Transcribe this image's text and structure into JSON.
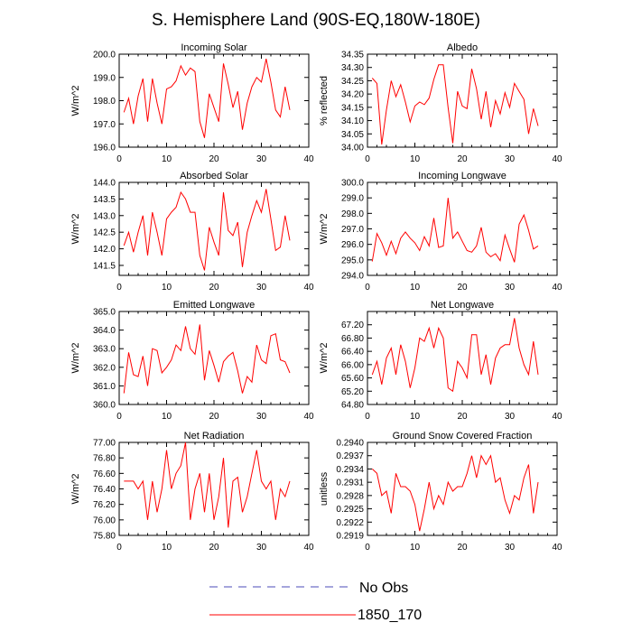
{
  "figure": {
    "title": "S. Hemisphere Land (90S-EQ,180W-180E)",
    "legend": [
      {
        "label": "No Obs",
        "color": "#4b4bb8",
        "style": "dashed"
      },
      {
        "label": "1850_170",
        "color": "#ff0000",
        "style": "solid"
      }
    ]
  },
  "chart_data": [
    {
      "type": "line",
      "title": "Incoming Solar",
      "ylabel": "W/m^2",
      "xlim": [
        0,
        40
      ],
      "ylim": [
        196.0,
        200.0
      ],
      "xticks": [
        0,
        10,
        20,
        30,
        40
      ],
      "yticks": [
        "196.0",
        "197.0",
        "198.0",
        "199.0",
        "200.0"
      ],
      "series": [
        {
          "name": "1850_170",
          "color": "#ff0000",
          "x": [
            1,
            2,
            3,
            4,
            5,
            6,
            7,
            8,
            9,
            10,
            11,
            12,
            13,
            14,
            15,
            16,
            17,
            18,
            19,
            20,
            21,
            22,
            23,
            24,
            25,
            26,
            27,
            28,
            29,
            30,
            31,
            32,
            33,
            34,
            35,
            36
          ],
          "y": [
            197.5,
            198.1,
            197.0,
            198.2,
            198.95,
            197.1,
            198.95,
            197.9,
            197.0,
            198.5,
            198.6,
            198.85,
            199.5,
            199.1,
            199.4,
            199.25,
            197.1,
            196.4,
            198.3,
            197.7,
            197.1,
            199.6,
            198.7,
            197.7,
            198.4,
            196.75,
            197.9,
            198.6,
            199.0,
            198.8,
            199.8,
            198.8,
            197.6,
            197.3,
            198.6,
            197.6
          ]
        }
      ]
    },
    {
      "type": "line",
      "title": "Albedo",
      "ylabel": "% reflected",
      "xlim": [
        0,
        40
      ],
      "ylim": [
        34.0,
        34.35
      ],
      "xticks": [
        0,
        10,
        20,
        30,
        40
      ],
      "yticks": [
        "34.00",
        "34.05",
        "34.10",
        "34.15",
        "34.20",
        "34.25",
        "34.30",
        "34.35"
      ],
      "series": [
        {
          "name": "1850_170",
          "color": "#ff0000",
          "x": [
            1,
            2,
            3,
            4,
            5,
            6,
            7,
            8,
            9,
            10,
            11,
            12,
            13,
            14,
            15,
            16,
            17,
            18,
            19,
            20,
            21,
            22,
            23,
            24,
            25,
            26,
            27,
            28,
            29,
            30,
            31,
            32,
            33,
            34,
            35,
            36
          ],
          "y": [
            34.26,
            34.24,
            34.01,
            34.14,
            34.25,
            34.19,
            34.235,
            34.17,
            34.095,
            34.155,
            34.17,
            34.16,
            34.185,
            34.255,
            34.31,
            34.31,
            34.15,
            34.015,
            34.21,
            34.155,
            34.145,
            34.295,
            34.22,
            34.105,
            34.21,
            34.075,
            34.175,
            34.125,
            34.205,
            34.15,
            34.24,
            34.21,
            34.18,
            34.05,
            34.145,
            34.08
          ]
        }
      ]
    },
    {
      "type": "line",
      "title": "Absorbed Solar",
      "ylabel": "W/m^2",
      "xlim": [
        0,
        40
      ],
      "ylim": [
        141.2,
        144.0
      ],
      "xticks": [
        0,
        10,
        20,
        30,
        40
      ],
      "yticks": [
        "141.5",
        "142.0",
        "142.5",
        "143.0",
        "143.5",
        "144.0"
      ],
      "series": [
        {
          "name": "1850_170",
          "color": "#ff0000",
          "x": [
            1,
            2,
            3,
            4,
            5,
            6,
            7,
            8,
            9,
            10,
            11,
            12,
            13,
            14,
            15,
            16,
            17,
            18,
            19,
            20,
            21,
            22,
            23,
            24,
            25,
            26,
            27,
            28,
            29,
            30,
            31,
            32,
            33,
            34,
            35,
            36
          ],
          "y": [
            142.1,
            142.5,
            141.9,
            142.5,
            143.0,
            141.8,
            143.1,
            142.5,
            141.8,
            142.9,
            143.1,
            143.25,
            143.7,
            143.5,
            143.1,
            143.1,
            141.8,
            141.35,
            142.65,
            142.2,
            141.8,
            143.7,
            142.55,
            142.4,
            142.8,
            141.45,
            142.5,
            143.0,
            143.45,
            143.1,
            143.8,
            142.9,
            141.95,
            142.05,
            143.0,
            142.25
          ]
        }
      ]
    },
    {
      "type": "line",
      "title": "Incoming Longwave",
      "ylabel": "W/m^2",
      "xlim": [
        0,
        40
      ],
      "ylim": [
        294.0,
        300.0
      ],
      "xticks": [
        0,
        10,
        20,
        30,
        40
      ],
      "yticks": [
        "294.0",
        "295.0",
        "296.0",
        "297.0",
        "298.0",
        "299.0",
        "300.0"
      ],
      "series": [
        {
          "name": "1850_170",
          "color": "#ff0000",
          "x": [
            1,
            2,
            3,
            4,
            5,
            6,
            7,
            8,
            9,
            10,
            11,
            12,
            13,
            14,
            15,
            16,
            17,
            18,
            19,
            20,
            21,
            22,
            23,
            24,
            25,
            26,
            27,
            28,
            29,
            30,
            31,
            32,
            33,
            34,
            35,
            36
          ],
          "y": [
            294.9,
            296.7,
            296.1,
            295.3,
            296.2,
            295.4,
            296.4,
            296.8,
            296.4,
            296.1,
            295.6,
            296.5,
            295.9,
            297.7,
            295.8,
            295.9,
            299.0,
            296.4,
            296.8,
            296.2,
            295.6,
            295.5,
            295.9,
            297.1,
            295.5,
            295.2,
            295.4,
            294.95,
            296.6,
            295.7,
            294.85,
            297.3,
            297.9,
            296.9,
            295.7,
            295.9
          ]
        }
      ]
    },
    {
      "type": "line",
      "title": "Emitted Longwave",
      "ylabel": "W/m^2",
      "xlim": [
        0,
        40
      ],
      "ylim": [
        360.0,
        365.0
      ],
      "xticks": [
        0,
        10,
        20,
        30,
        40
      ],
      "yticks": [
        "360.0",
        "361.0",
        "362.0",
        "363.0",
        "364.0",
        "365.0"
      ],
      "series": [
        {
          "name": "1850_170",
          "color": "#ff0000",
          "x": [
            1,
            2,
            3,
            4,
            5,
            6,
            7,
            8,
            9,
            10,
            11,
            12,
            13,
            14,
            15,
            16,
            17,
            18,
            19,
            20,
            21,
            22,
            23,
            24,
            25,
            26,
            27,
            28,
            29,
            30,
            31,
            32,
            33,
            34,
            35,
            36
          ],
          "y": [
            360.6,
            362.8,
            361.6,
            361.5,
            362.6,
            361.0,
            363.0,
            362.9,
            361.7,
            362.0,
            362.4,
            363.2,
            362.9,
            364.2,
            363.0,
            362.7,
            364.3,
            361.3,
            362.9,
            362.1,
            361.2,
            362.3,
            362.6,
            362.8,
            361.8,
            360.6,
            361.5,
            361.2,
            363.2,
            362.4,
            362.2,
            363.7,
            363.8,
            362.4,
            362.3,
            361.7
          ]
        }
      ]
    },
    {
      "type": "line",
      "title": "Net Longwave",
      "ylabel": "W/m^2",
      "xlim": [
        0,
        40
      ],
      "ylim": [
        64.8,
        67.6
      ],
      "xticks": [
        0,
        10,
        20,
        30,
        40
      ],
      "yticks": [
        "64.80",
        "65.20",
        "65.60",
        "66.00",
        "66.40",
        "66.80",
        "67.20"
      ],
      "series": [
        {
          "name": "1850_170",
          "color": "#ff0000",
          "x": [
            1,
            2,
            3,
            4,
            5,
            6,
            7,
            8,
            9,
            10,
            11,
            12,
            13,
            14,
            15,
            16,
            17,
            18,
            19,
            20,
            21,
            22,
            23,
            24,
            25,
            26,
            27,
            28,
            29,
            30,
            31,
            32,
            33,
            34,
            35,
            36
          ],
          "y": [
            65.7,
            66.1,
            65.4,
            66.2,
            66.5,
            65.7,
            66.6,
            66.1,
            65.3,
            65.9,
            66.8,
            66.7,
            67.1,
            66.5,
            67.1,
            66.8,
            65.3,
            65.2,
            66.1,
            65.9,
            65.6,
            66.9,
            66.9,
            65.7,
            66.3,
            65.4,
            66.2,
            66.5,
            66.6,
            66.6,
            67.4,
            66.5,
            66.0,
            65.7,
            66.7,
            65.7
          ]
        }
      ]
    },
    {
      "type": "line",
      "title": "Net Radiation",
      "ylabel": "W/m^2",
      "xlim": [
        0,
        40
      ],
      "ylim": [
        75.8,
        77.0
      ],
      "xticks": [
        0,
        10,
        20,
        30,
        40
      ],
      "yticks": [
        "75.80",
        "76.00",
        "76.20",
        "76.40",
        "76.60",
        "76.80",
        "77.00"
      ],
      "series": [
        {
          "name": "1850_170",
          "color": "#ff0000",
          "x": [
            1,
            2,
            3,
            4,
            5,
            6,
            7,
            8,
            9,
            10,
            11,
            12,
            13,
            14,
            15,
            16,
            17,
            18,
            19,
            20,
            21,
            22,
            23,
            24,
            25,
            26,
            27,
            28,
            29,
            30,
            31,
            32,
            33,
            34,
            35,
            36
          ],
          "y": [
            76.5,
            76.5,
            76.5,
            76.4,
            76.5,
            76.0,
            76.5,
            76.1,
            76.4,
            76.9,
            76.4,
            76.6,
            76.7,
            77.0,
            76.0,
            76.4,
            76.6,
            76.1,
            76.6,
            76.0,
            76.3,
            76.8,
            75.9,
            76.5,
            76.55,
            76.1,
            76.3,
            76.6,
            76.9,
            76.5,
            76.4,
            76.5,
            76.0,
            76.4,
            76.3,
            76.5
          ]
        }
      ]
    },
    {
      "type": "line",
      "title": "Ground Snow Covered Fraction",
      "ylabel": "unitless",
      "xlim": [
        0,
        40
      ],
      "ylim": [
        0.2919,
        0.294
      ],
      "xticks": [
        0,
        10,
        20,
        30,
        40
      ],
      "yticks": [
        "0.2919",
        "0.2922",
        "0.2925",
        "0.2928",
        "0.2931",
        "0.2934",
        "0.2937",
        "0.2940"
      ],
      "series": [
        {
          "name": "1850_170",
          "color": "#ff0000",
          "x": [
            1,
            2,
            3,
            4,
            5,
            6,
            7,
            8,
            9,
            10,
            11,
            12,
            13,
            14,
            15,
            16,
            17,
            18,
            19,
            20,
            21,
            22,
            23,
            24,
            25,
            26,
            27,
            28,
            29,
            30,
            31,
            32,
            33,
            34,
            35,
            36
          ],
          "y": [
            0.2934,
            0.2933,
            0.2928,
            0.2929,
            0.2924,
            0.2933,
            0.293,
            0.293,
            0.2929,
            0.2926,
            0.292,
            0.2925,
            0.2931,
            0.2925,
            0.2928,
            0.2926,
            0.2931,
            0.2929,
            0.293,
            0.293,
            0.2933,
            0.2937,
            0.2932,
            0.2937,
            0.2935,
            0.2937,
            0.2931,
            0.2932,
            0.2927,
            0.2924,
            0.2928,
            0.2927,
            0.2932,
            0.2935,
            0.2924,
            0.2931
          ]
        }
      ]
    }
  ]
}
